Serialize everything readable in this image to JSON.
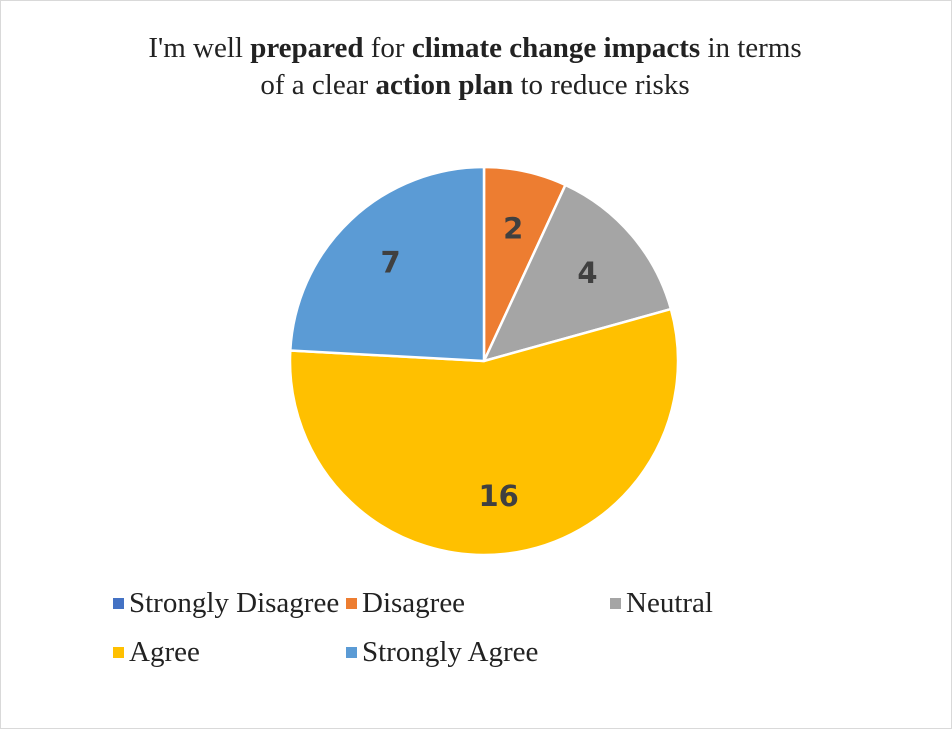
{
  "chart_data": {
    "type": "pie",
    "title_parts": [
      {
        "text": "I'm well ",
        "bold": false
      },
      {
        "text": "prepared",
        "bold": true
      },
      {
        "text": " for ",
        "bold": false
      },
      {
        "text": "climate change impacts",
        "bold": true
      },
      {
        "text": " in terms",
        "bold": false
      },
      {
        "text": "\n",
        "bold": false
      },
      {
        "text": "of a clear ",
        "bold": false
      },
      {
        "text": "action plan",
        "bold": true
      },
      {
        "text": " to reduce risks",
        "bold": false
      }
    ],
    "categories": [
      "Strongly Disagree",
      "Disagree",
      "Neutral",
      "Agree",
      "Strongly Agree"
    ],
    "values": [
      0,
      2,
      4,
      16,
      7
    ],
    "data_labels": [
      "",
      "2",
      "4",
      "16",
      "7"
    ],
    "colors": [
      "#4472c4",
      "#ed7d31",
      "#a5a5a5",
      "#ffc000",
      "#5b9bd5"
    ],
    "start_angle": "12 o'clock",
    "direction": "clockwise",
    "legend": {
      "position": "bottom",
      "entries": [
        {
          "label": "Strongly Disagree",
          "color": "#4472c4"
        },
        {
          "label": "Disagree",
          "color": "#ed7d31"
        },
        {
          "label": "Neutral",
          "color": "#a5a5a5"
        },
        {
          "label": "Agree",
          "color": "#ffc000"
        },
        {
          "label": "Strongly Agree",
          "color": "#5b9bd5"
        }
      ]
    }
  }
}
